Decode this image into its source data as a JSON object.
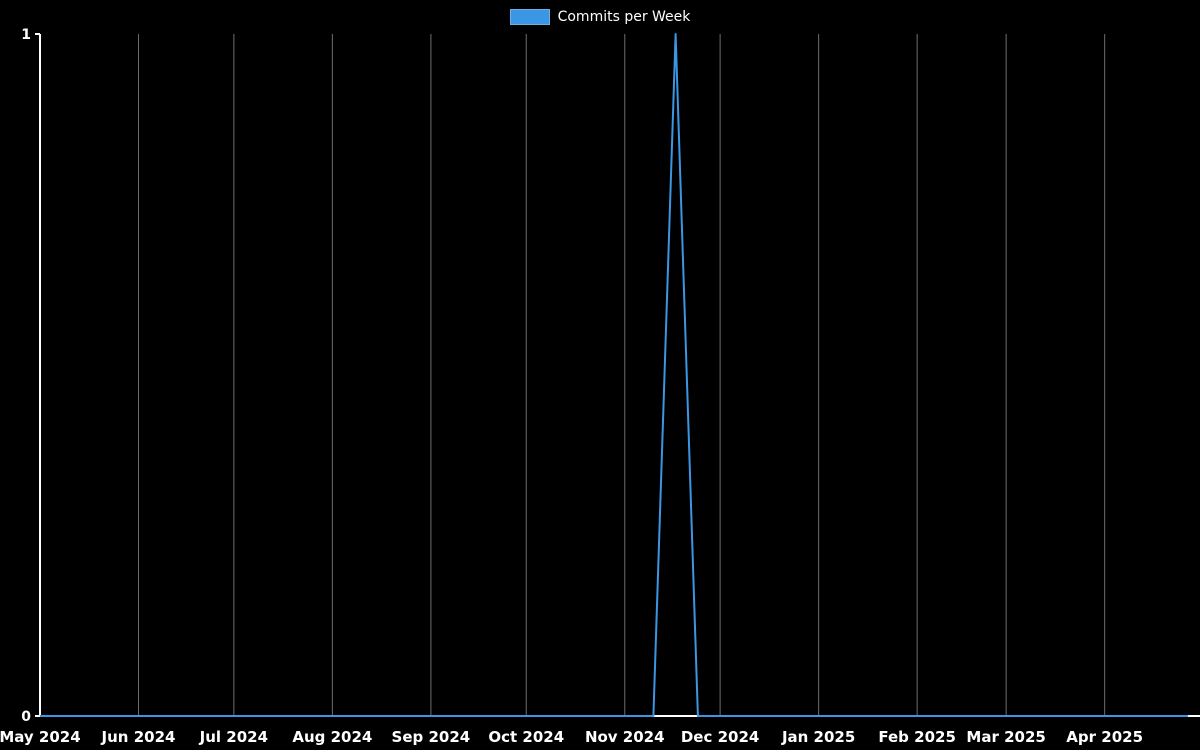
{
  "chart_data": {
    "type": "line",
    "title": "Commits per Week",
    "background_color": "#000000",
    "axis_color": "#ffffff",
    "grid_color": "#c8c8c8",
    "legend": {
      "label": "Commits per Week",
      "color": "#3b97e3",
      "position": "top-center"
    },
    "grid": {
      "vertical": true,
      "horizontal": false
    },
    "ylim": [
      0,
      1
    ],
    "y_ticks": [
      {
        "value": 0,
        "label": "0"
      },
      {
        "value": 1,
        "label": "1"
      }
    ],
    "x_domain": [
      "2024-05-01",
      "2025-05-01"
    ],
    "x_ticks": [
      {
        "date": "2024-05-01",
        "label": "May 2024"
      },
      {
        "date": "2024-06-01",
        "label": "Jun 2024"
      },
      {
        "date": "2024-07-01",
        "label": "Jul 2024"
      },
      {
        "date": "2024-08-01",
        "label": "Aug 2024"
      },
      {
        "date": "2024-09-01",
        "label": "Sep 2024"
      },
      {
        "date": "2024-10-01",
        "label": "Oct 2024"
      },
      {
        "date": "2024-11-01",
        "label": "Nov 2024"
      },
      {
        "date": "2024-12-01",
        "label": "Dec 2024"
      },
      {
        "date": "2025-01-01",
        "label": "Jan 2025"
      },
      {
        "date": "2025-02-01",
        "label": "Feb 2025"
      },
      {
        "date": "2025-03-01",
        "label": "Mar 2025"
      },
      {
        "date": "2025-04-01",
        "label": "Apr 2025"
      }
    ],
    "series": [
      {
        "name": "Commits per Week",
        "color": "#3b97e3",
        "line_width": 2,
        "x": [
          "2024-04-28",
          "2024-05-05",
          "2024-05-12",
          "2024-05-19",
          "2024-05-26",
          "2024-06-02",
          "2024-06-09",
          "2024-06-16",
          "2024-06-23",
          "2024-06-30",
          "2024-07-07",
          "2024-07-14",
          "2024-07-21",
          "2024-07-28",
          "2024-08-04",
          "2024-08-11",
          "2024-08-18",
          "2024-08-25",
          "2024-09-01",
          "2024-09-08",
          "2024-09-15",
          "2024-09-22",
          "2024-09-29",
          "2024-10-06",
          "2024-10-13",
          "2024-10-20",
          "2024-10-27",
          "2024-11-03",
          "2024-11-10",
          "2024-11-17",
          "2024-11-24",
          "2024-12-01",
          "2024-12-08",
          "2024-12-15",
          "2024-12-22",
          "2024-12-29",
          "2025-01-05",
          "2025-01-12",
          "2025-01-19",
          "2025-01-26",
          "2025-02-02",
          "2025-02-09",
          "2025-02-16",
          "2025-02-23",
          "2025-03-02",
          "2025-03-09",
          "2025-03-16",
          "2025-03-23",
          "2025-03-30",
          "2025-04-06",
          "2025-04-13",
          "2025-04-20",
          "2025-04-27"
        ],
        "values": [
          0,
          0,
          0,
          0,
          0,
          0,
          0,
          0,
          0,
          0,
          0,
          0,
          0,
          0,
          0,
          0,
          0,
          0,
          0,
          0,
          0,
          0,
          0,
          0,
          0,
          0,
          0,
          0,
          0,
          1,
          0,
          0,
          0,
          0,
          0,
          0,
          0,
          0,
          0,
          0,
          0,
          0,
          0,
          0,
          0,
          0,
          0,
          0,
          0,
          0,
          0,
          0,
          0
        ]
      }
    ]
  }
}
